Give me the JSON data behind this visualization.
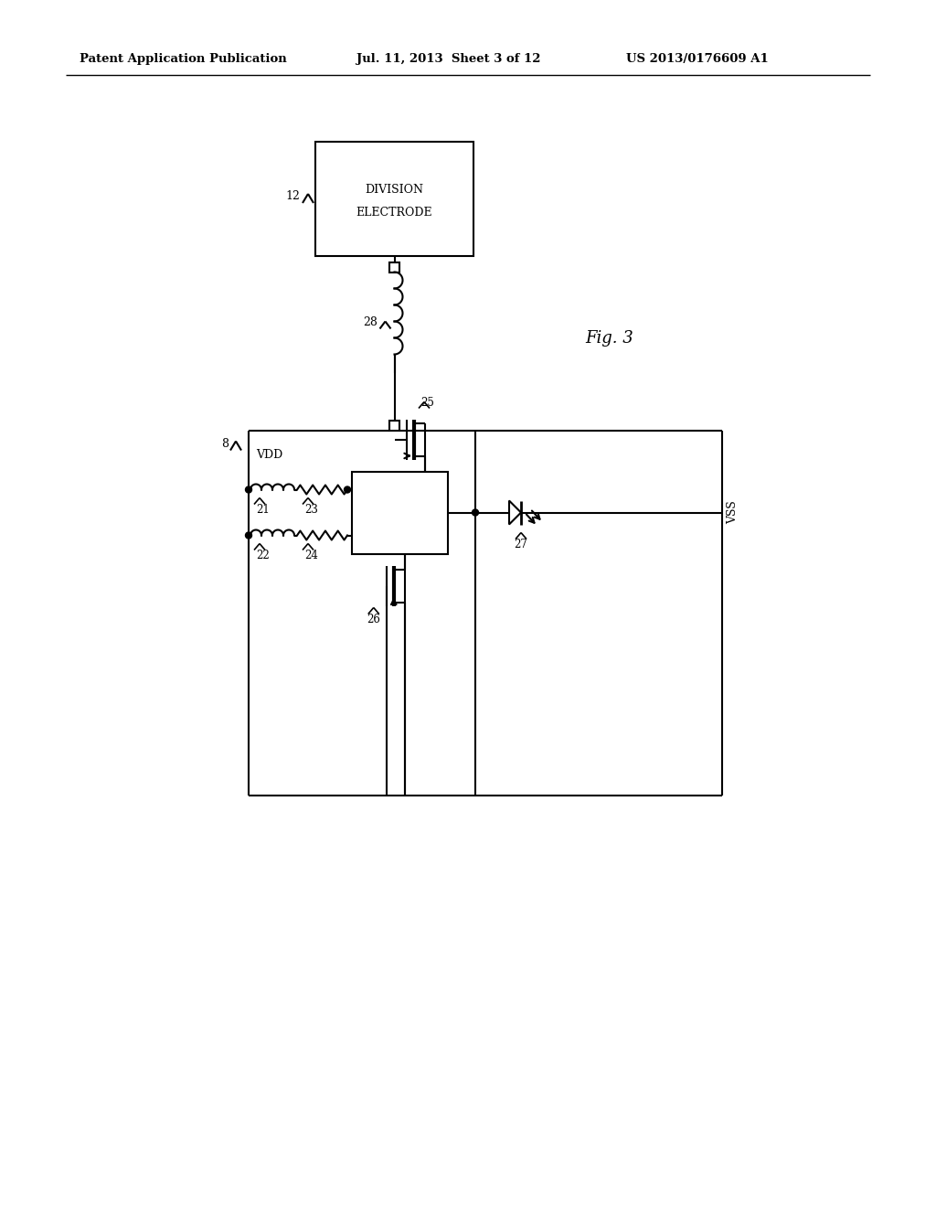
{
  "bg_color": "#ffffff",
  "line_color": "#000000",
  "header_left": "Patent Application Publication",
  "header_mid": "Jul. 11, 2013  Sheet 3 of 12",
  "header_right": "US 2013/0176609 A1",
  "fig_label": "Fig. 3"
}
